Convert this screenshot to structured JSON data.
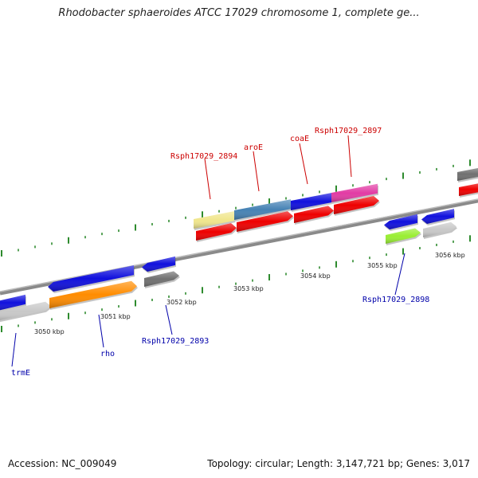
{
  "header": {
    "title": "Rhodobacter sphaeroides ATCC 17029 chromosome 1, complete ge..."
  },
  "footer": {
    "accession_label": "Accession:",
    "accession": "NC_009049",
    "topology_label": "Topology:",
    "topology": "circular",
    "length_label": "Length:",
    "length": "3,147,721 bp",
    "genes_label": "Genes:",
    "genes": "3,017"
  },
  "colors": {
    "backbone": "#888888",
    "tick": "#2e8b2e",
    "label_top": "#cc0000",
    "label_bottom": "#0000aa"
  },
  "ticks": [
    "3050 kbp",
    "3051 kbp",
    "3052 kbp",
    "3053 kbp",
    "3054 kbp",
    "3055 kbp",
    "3056 kbp"
  ],
  "features": [
    {
      "id": "trmE-top",
      "color": "#1010dd",
      "label": ""
    },
    {
      "id": "trmE",
      "color": "#c8c8c8",
      "label": "trmE"
    },
    {
      "id": "rho-top",
      "color": "#1010dd",
      "label": ""
    },
    {
      "id": "rho",
      "color": "#ff8c00",
      "label": "rho"
    },
    {
      "id": "Rsph17029_2893-top",
      "color": "#1010dd",
      "label": ""
    },
    {
      "id": "Rsph17029_2893",
      "color": "#707070",
      "label": "Rsph17029_2893"
    },
    {
      "id": "Rsph17029_2894",
      "color": "#f0e68c",
      "label": "Rsph17029_2894"
    },
    {
      "id": "aroE",
      "color": "#4682b4",
      "label": "aroE"
    },
    {
      "id": "coaE",
      "color": "#1010dd",
      "label": "coaE"
    },
    {
      "id": "Rsph17029_2897",
      "color": "#e23ba4",
      "label": "Rsph17029_2897"
    },
    {
      "id": "Rsph17029_2898-top",
      "color": "#1010dd",
      "label": ""
    },
    {
      "id": "Rsph17029_2898",
      "color": "#99ee33",
      "label": "Rsph17029_2898"
    },
    {
      "id": "Rsph17029_2899-top",
      "color": "#1010dd",
      "label": ""
    },
    {
      "id": "Rsph17029_2899",
      "color": "#c8c8c8",
      "label": ""
    },
    {
      "id": "right-edge-gray",
      "color": "#707070",
      "label": ""
    },
    {
      "id": "right-edge-red",
      "color": "#ee0000",
      "label": ""
    },
    {
      "id": "red-1",
      "color": "#ee0000",
      "label": ""
    },
    {
      "id": "red-2",
      "color": "#ee0000",
      "label": ""
    },
    {
      "id": "red-3",
      "color": "#ee0000",
      "label": ""
    },
    {
      "id": "red-4",
      "color": "#ee0000",
      "label": ""
    }
  ]
}
